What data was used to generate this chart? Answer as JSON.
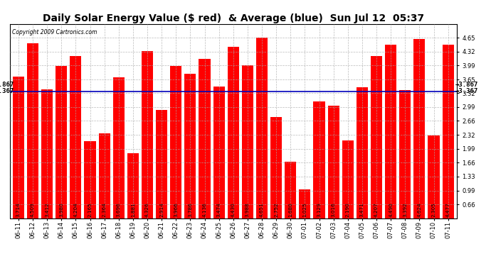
{
  "title": "Daily Solar Energy Value ($ red)  & Average (blue)  Sun Jul 12  05:37",
  "copyright": "Copyright 2009 Cartronics.com",
  "categories": [
    "06-11",
    "06-12",
    "06-13",
    "06-14",
    "06-15",
    "06-16",
    "06-17",
    "06-18",
    "06-19",
    "06-20",
    "06-21",
    "06-22",
    "06-23",
    "06-24",
    "06-25",
    "06-26",
    "06-27",
    "06-28",
    "06-29",
    "06-30",
    "07-01",
    "07-02",
    "07-03",
    "07-04",
    "07-05",
    "07-06",
    "07-07",
    "07-08",
    "07-09",
    "07-10",
    "07-11"
  ],
  "values": [
    3.714,
    4.509,
    3.412,
    3.98,
    4.204,
    2.165,
    2.364,
    3.696,
    1.881,
    4.326,
    2.914,
    3.966,
    3.786,
    4.136,
    3.474,
    4.43,
    3.988,
    4.651,
    2.752,
    1.68,
    1.025,
    3.129,
    3.016,
    2.19,
    3.471,
    4.207,
    4.49,
    3.392,
    4.624,
    2.305,
    4.477
  ],
  "average": 3.367,
  "bar_color": "#ff0000",
  "avg_line_color": "#0000bb",
  "background_color": "#ffffff",
  "grid_color": "#aaaaaa",
  "yticks": [
    4.65,
    4.32,
    3.99,
    3.65,
    3.32,
    2.99,
    2.66,
    2.32,
    1.99,
    1.66,
    1.33,
    0.99,
    0.66
  ],
  "ylim_lo": 0.33,
  "ylim_hi": 4.98,
  "avg_label": "3.367",
  "title_fontsize": 10,
  "tick_fontsize": 6,
  "value_fontsize": 5.2,
  "copyright_fontsize": 5.5,
  "avg_fontsize": 6.5
}
